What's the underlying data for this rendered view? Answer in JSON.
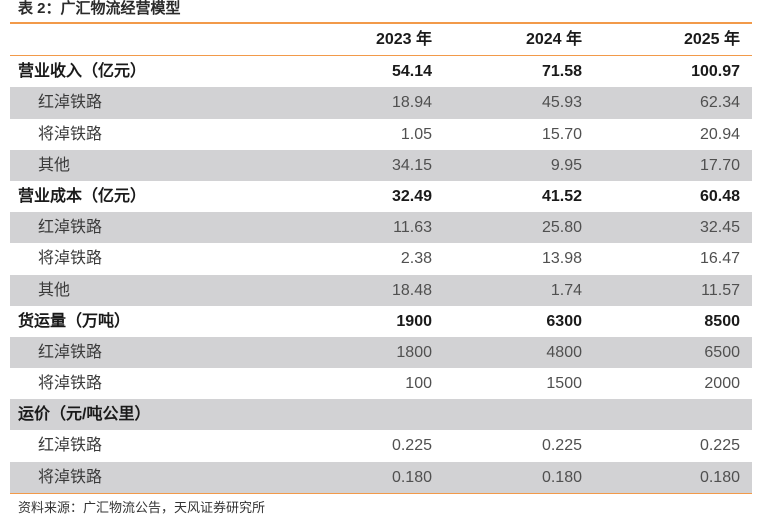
{
  "title": "表 2：广汇物流经营模型",
  "columns": [
    "",
    "2023 年",
    "2024 年",
    "2025 年"
  ],
  "rows": [
    {
      "label": "营业收入（亿元）",
      "values": [
        "54.14",
        "71.58",
        "100.97"
      ],
      "kind": "bold",
      "shade": false
    },
    {
      "label": "红淖铁路",
      "values": [
        "18.94",
        "45.93",
        "62.34"
      ],
      "kind": "sub",
      "shade": true
    },
    {
      "label": "将淖铁路",
      "values": [
        "1.05",
        "15.70",
        "20.94"
      ],
      "kind": "sub",
      "shade": false
    },
    {
      "label": "其他",
      "values": [
        "34.15",
        "9.95",
        "17.70"
      ],
      "kind": "sub",
      "shade": true
    },
    {
      "label": "营业成本（亿元）",
      "values": [
        "32.49",
        "41.52",
        "60.48"
      ],
      "kind": "bold",
      "shade": false
    },
    {
      "label": "红淖铁路",
      "values": [
        "11.63",
        "25.80",
        "32.45"
      ],
      "kind": "sub",
      "shade": true
    },
    {
      "label": "将淖铁路",
      "values": [
        "2.38",
        "13.98",
        "16.47"
      ],
      "kind": "sub",
      "shade": false
    },
    {
      "label": "其他",
      "values": [
        "18.48",
        "1.74",
        "11.57"
      ],
      "kind": "sub",
      "shade": true
    },
    {
      "label": "货运量（万吨）",
      "values": [
        "1900",
        "6300",
        "8500"
      ],
      "kind": "bold",
      "shade": false
    },
    {
      "label": "红淖铁路",
      "values": [
        "1800",
        "4800",
        "6500"
      ],
      "kind": "sub",
      "shade": true
    },
    {
      "label": "将淖铁路",
      "values": [
        "100",
        "1500",
        "2000"
      ],
      "kind": "sub",
      "shade": false
    },
    {
      "label": "运价（元/吨公里）",
      "values": [
        "",
        "",
        ""
      ],
      "kind": "bold",
      "shade": true
    },
    {
      "label": "红淖铁路",
      "values": [
        "0.225",
        "0.225",
        "0.225"
      ],
      "kind": "sub",
      "shade": false
    },
    {
      "label": "将淖铁路",
      "values": [
        "0.180",
        "0.180",
        "0.180"
      ],
      "kind": "sub",
      "shade": true
    }
  ],
  "source": "资料来源：广汇物流公告，天风证券研究所",
  "colors": {
    "accent": "#f29a4a",
    "shade": "#d2d2d4"
  }
}
